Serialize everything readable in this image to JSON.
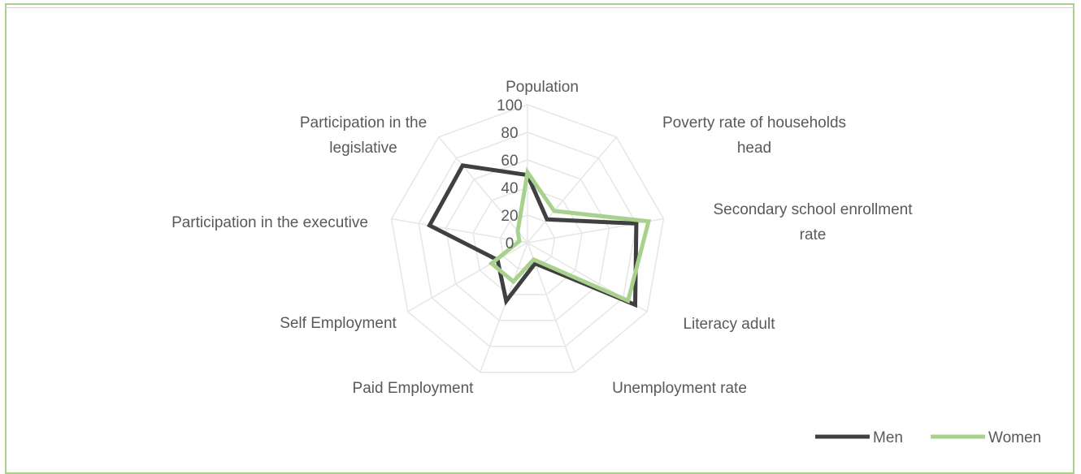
{
  "chart_data": {
    "type": "radar",
    "title": "",
    "categories": [
      "Population",
      "Poverty rate of households head",
      "Secondary school enrollment rate",
      "Literacy adult",
      "Unemployment rate",
      "Paid Employment",
      "Self Employment",
      "Participation in the executive",
      "Participation in the legislative"
    ],
    "category_label_lines": [
      [
        "Population"
      ],
      [
        "Poverty rate of households",
        "head"
      ],
      [
        "Secondary school enrollment",
        "rate"
      ],
      [
        "Literacy adult"
      ],
      [
        "Unemployment rate"
      ],
      [
        "Paid Employment"
      ],
      [
        "Self Employment"
      ],
      [
        "Participation in the executive"
      ],
      [
        "Participation in the",
        "legislative"
      ]
    ],
    "radial_ticks": [
      "0",
      "20",
      "40",
      "60",
      "80",
      "100"
    ],
    "rlim": [
      0,
      100
    ],
    "series": [
      {
        "name": "Men",
        "color": "#404040",
        "values": [
          49,
          22,
          80,
          90,
          16,
          45,
          25,
          72,
          73
        ]
      },
      {
        "name": "Women",
        "color": "#a9d18e",
        "values": [
          51,
          30,
          89,
          84,
          13,
          30,
          30,
          6,
          11
        ]
      }
    ],
    "legend": {
      "placement": "bottom-right"
    },
    "grid": true
  }
}
